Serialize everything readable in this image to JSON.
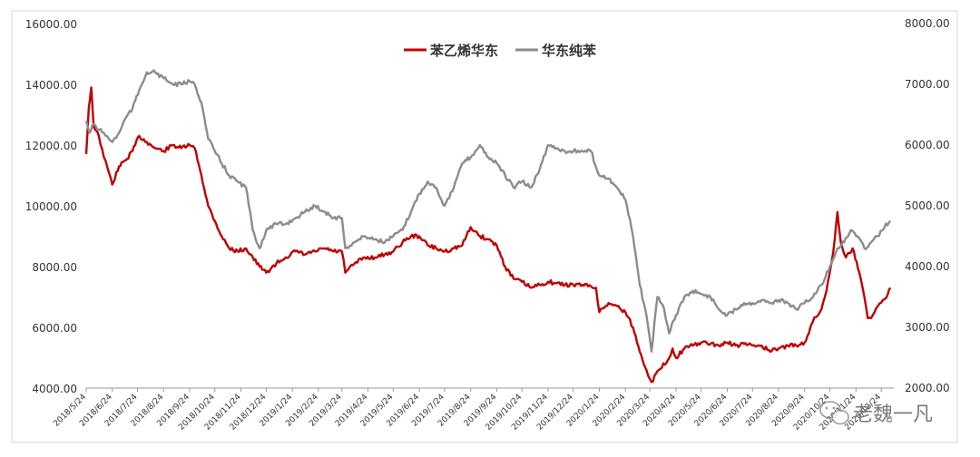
{
  "chart_data": {
    "type": "line",
    "title": "",
    "xlabel": "",
    "ylabel_left": "",
    "ylabel_right": "",
    "y_left_range": [
      4000,
      16000
    ],
    "y_right_range": [
      2000,
      8000
    ],
    "y_left_ticks": [
      "4000.00",
      "6000.00",
      "8000.00",
      "10000.00",
      "12000.00",
      "14000.00",
      "16000.00"
    ],
    "y_right_ticks": [
      "2000.00",
      "3000.00",
      "4000.00",
      "5000.00",
      "6000.00",
      "7000.00",
      "8000.00"
    ],
    "x_ticks": [
      "2018/5/24",
      "2018/6/24",
      "2018/7/24",
      "2018/8/24",
      "2018/9/24",
      "2018/10/24",
      "2018/11/24",
      "2018/12/24",
      "2019/1/24",
      "2019/2/24",
      "2019/3/24",
      "2019/4/24",
      "2019/5/24",
      "2019/6/24",
      "2019/7/24",
      "2019/8/24",
      "2019/9/24",
      "2019/10/24",
      "2019/11/24",
      "2019/12/24",
      "2020/1/24",
      "2020/2/24",
      "2020/3/24",
      "2020/4/24",
      "2020/5/24",
      "2020/6/24",
      "2020/7/24",
      "2020/8/24",
      "2020/9/24",
      "2020/10/24",
      "2020/11/24",
      "2020/12/24"
    ],
    "grid": false,
    "legend_position": "top-center",
    "series": [
      {
        "name": "苯乙烯华东",
        "axis": "left",
        "color": "#c00000",
        "points": [
          [
            "2018/5/24",
            11700
          ],
          [
            "2018/5/27",
            13200
          ],
          [
            "2018/5/30",
            13900
          ],
          [
            "2018/6/2",
            12600
          ],
          [
            "2018/6/8",
            12300
          ],
          [
            "2018/6/14",
            11600
          ],
          [
            "2018/6/20",
            11100
          ],
          [
            "2018/6/24",
            10700
          ],
          [
            "2018/7/2",
            11300
          ],
          [
            "2018/7/10",
            11500
          ],
          [
            "2018/7/18",
            11800
          ],
          [
            "2018/7/26",
            12300
          ],
          [
            "2018/8/4",
            12100
          ],
          [
            "2018/8/14",
            11900
          ],
          [
            "2018/8/24",
            11800
          ],
          [
            "2018/9/4",
            12000
          ],
          [
            "2018/9/14",
            11900
          ],
          [
            "2018/9/24",
            12000
          ],
          [
            "2018/9/30",
            11900
          ],
          [
            "2018/10/8",
            11000
          ],
          [
            "2018/10/16",
            10000
          ],
          [
            "2018/10/24",
            9500
          ],
          [
            "2018/11/1",
            9000
          ],
          [
            "2018/11/10",
            8600
          ],
          [
            "2018/11/20",
            8500
          ],
          [
            "2018/11/30",
            8600
          ],
          [
            "2018/12/8",
            8300
          ],
          [
            "2018/12/16",
            8000
          ],
          [
            "2018/12/24",
            7800
          ],
          [
            "2019/1/5",
            8100
          ],
          [
            "2019/1/16",
            8300
          ],
          [
            "2019/1/28",
            8500
          ],
          [
            "2019/2/8",
            8400
          ],
          [
            "2019/2/20",
            8500
          ],
          [
            "2019/3/4",
            8600
          ],
          [
            "2019/3/14",
            8500
          ],
          [
            "2019/3/24",
            8500
          ],
          [
            "2019/3/28",
            7800
          ],
          [
            "2019/4/8",
            8100
          ],
          [
            "2019/4/20",
            8300
          ],
          [
            "2019/5/2",
            8300
          ],
          [
            "2019/5/14",
            8400
          ],
          [
            "2019/5/24",
            8500
          ],
          [
            "2019/6/4",
            8800
          ],
          [
            "2019/6/14",
            9000
          ],
          [
            "2019/6/24",
            9000
          ],
          [
            "2019/7/4",
            8700
          ],
          [
            "2019/7/14",
            8600
          ],
          [
            "2019/7/24",
            8500
          ],
          [
            "2019/8/4",
            8600
          ],
          [
            "2019/8/14",
            8700
          ],
          [
            "2019/8/24",
            9300
          ],
          [
            "2019/9/4",
            9000
          ],
          [
            "2019/9/14",
            8900
          ],
          [
            "2019/9/24",
            8700
          ],
          [
            "2019/10/4",
            8000
          ],
          [
            "2019/10/14",
            7600
          ],
          [
            "2019/10/24",
            7500
          ],
          [
            "2019/11/4",
            7300
          ],
          [
            "2019/11/14",
            7400
          ],
          [
            "2019/11/24",
            7500
          ],
          [
            "2019/12/4",
            7450
          ],
          [
            "2019/12/14",
            7400
          ],
          [
            "2019/12/24",
            7400
          ],
          [
            "2020/1/4",
            7400
          ],
          [
            "2020/1/14",
            7350
          ],
          [
            "2020/1/20",
            7300
          ],
          [
            "2020/1/24",
            6500
          ],
          [
            "2020/2/4",
            6800
          ],
          [
            "2020/2/14",
            6700
          ],
          [
            "2020/2/24",
            6500
          ],
          [
            "2020/3/4",
            6000
          ],
          [
            "2020/3/12",
            5200
          ],
          [
            "2020/3/20",
            4600
          ],
          [
            "2020/3/26",
            4200
          ],
          [
            "2020/4/4",
            4600
          ],
          [
            "2020/4/14",
            4900
          ],
          [
            "2020/4/20",
            5300
          ],
          [
            "2020/4/24",
            5000
          ],
          [
            "2020/5/4",
            5300
          ],
          [
            "2020/5/14",
            5400
          ],
          [
            "2020/5/24",
            5500
          ],
          [
            "2020/6/4",
            5450
          ],
          [
            "2020/6/14",
            5400
          ],
          [
            "2020/6/24",
            5500
          ],
          [
            "2020/7/4",
            5400
          ],
          [
            "2020/7/14",
            5450
          ],
          [
            "2020/7/24",
            5400
          ],
          [
            "2020/8/4",
            5400
          ],
          [
            "2020/8/14",
            5200
          ],
          [
            "2020/8/24",
            5300
          ],
          [
            "2020/9/4",
            5400
          ],
          [
            "2020/9/14",
            5400
          ],
          [
            "2020/9/24",
            5500
          ],
          [
            "2020/10/4",
            6200
          ],
          [
            "2020/10/14",
            6600
          ],
          [
            "2020/10/20",
            7200
          ],
          [
            "2020/10/28",
            8500
          ],
          [
            "2020/11/2",
            9800
          ],
          [
            "2020/11/6",
            8800
          ],
          [
            "2020/11/12",
            8300
          ],
          [
            "2020/11/20",
            8600
          ],
          [
            "2020/11/28",
            7800
          ],
          [
            "2020/12/4",
            7000
          ],
          [
            "2020/12/8",
            6300
          ],
          [
            "2020/12/14",
            6400
          ],
          [
            "2020/12/20",
            6700
          ],
          [
            "2020/12/26",
            6900
          ],
          [
            "2021/1/1",
            7100
          ],
          [
            "2021/1/4",
            7300
          ]
        ]
      },
      {
        "name": "华东纯苯",
        "axis": "right",
        "color": "#8c8c8c",
        "points": [
          [
            "2018/5/24",
            6400
          ],
          [
            "2018/5/28",
            6200
          ],
          [
            "2018/6/2",
            6350
          ],
          [
            "2018/6/8",
            6250
          ],
          [
            "2018/6/14",
            6200
          ],
          [
            "2018/6/20",
            6100
          ],
          [
            "2018/6/24",
            6050
          ],
          [
            "2018/7/2",
            6200
          ],
          [
            "2018/7/10",
            6450
          ],
          [
            "2018/7/18",
            6600
          ],
          [
            "2018/7/26",
            6900
          ],
          [
            "2018/8/4",
            7200
          ],
          [
            "2018/8/14",
            7200
          ],
          [
            "2018/8/24",
            7100
          ],
          [
            "2018/9/4",
            7000
          ],
          [
            "2018/9/14",
            7000
          ],
          [
            "2018/9/24",
            7050
          ],
          [
            "2018/9/30",
            7000
          ],
          [
            "2018/10/8",
            6700
          ],
          [
            "2018/10/16",
            6100
          ],
          [
            "2018/10/24",
            5900
          ],
          [
            "2018/11/1",
            5700
          ],
          [
            "2018/11/10",
            5500
          ],
          [
            "2018/11/20",
            5400
          ],
          [
            "2018/11/30",
            5300
          ],
          [
            "2018/12/8",
            4600
          ],
          [
            "2018/12/16",
            4300
          ],
          [
            "2018/12/24",
            4600
          ],
          [
            "2019/1/5",
            4700
          ],
          [
            "2019/1/16",
            4700
          ],
          [
            "2019/1/28",
            4800
          ],
          [
            "2019/2/8",
            4900
          ],
          [
            "2019/2/20",
            5000
          ],
          [
            "2019/3/4",
            4900
          ],
          [
            "2019/3/14",
            4800
          ],
          [
            "2019/3/24",
            4800
          ],
          [
            "2019/3/28",
            4300
          ],
          [
            "2019/4/8",
            4400
          ],
          [
            "2019/4/20",
            4500
          ],
          [
            "2019/5/2",
            4450
          ],
          [
            "2019/5/14",
            4400
          ],
          [
            "2019/5/24",
            4500
          ],
          [
            "2019/6/4",
            4600
          ],
          [
            "2019/6/14",
            4900
          ],
          [
            "2019/6/24",
            5200
          ],
          [
            "2019/7/4",
            5400
          ],
          [
            "2019/7/14",
            5300
          ],
          [
            "2019/7/24",
            5000
          ],
          [
            "2019/8/4",
            5300
          ],
          [
            "2019/8/14",
            5700
          ],
          [
            "2019/8/24",
            5800
          ],
          [
            "2019/9/4",
            6000
          ],
          [
            "2019/9/14",
            5800
          ],
          [
            "2019/9/24",
            5700
          ],
          [
            "2019/10/4",
            5500
          ],
          [
            "2019/10/14",
            5300
          ],
          [
            "2019/10/24",
            5400
          ],
          [
            "2019/11/4",
            5300
          ],
          [
            "2019/11/14",
            5600
          ],
          [
            "2019/11/24",
            6000
          ],
          [
            "2019/12/4",
            5950
          ],
          [
            "2019/12/14",
            5900
          ],
          [
            "2019/12/24",
            5900
          ],
          [
            "2020/1/4",
            5900
          ],
          [
            "2020/1/14",
            5900
          ],
          [
            "2020/1/24",
            5500
          ],
          [
            "2020/2/4",
            5450
          ],
          [
            "2020/2/14",
            5300
          ],
          [
            "2020/2/24",
            5100
          ],
          [
            "2020/3/4",
            4500
          ],
          [
            "2020/3/12",
            3700
          ],
          [
            "2020/3/20",
            3200
          ],
          [
            "2020/3/26",
            2600
          ],
          [
            "2020/4/2",
            3500
          ],
          [
            "2020/4/10",
            3300
          ],
          [
            "2020/4/16",
            2900
          ],
          [
            "2020/4/24",
            3200
          ],
          [
            "2020/5/4",
            3500
          ],
          [
            "2020/5/14",
            3600
          ],
          [
            "2020/5/24",
            3550
          ],
          [
            "2020/6/4",
            3500
          ],
          [
            "2020/6/14",
            3300
          ],
          [
            "2020/6/24",
            3200
          ],
          [
            "2020/7/4",
            3300
          ],
          [
            "2020/7/14",
            3400
          ],
          [
            "2020/7/24",
            3400
          ],
          [
            "2020/8/4",
            3450
          ],
          [
            "2020/8/14",
            3400
          ],
          [
            "2020/8/24",
            3450
          ],
          [
            "2020/9/4",
            3400
          ],
          [
            "2020/9/14",
            3300
          ],
          [
            "2020/9/24",
            3400
          ],
          [
            "2020/10/4",
            3500
          ],
          [
            "2020/10/14",
            3700
          ],
          [
            "2020/10/24",
            4000
          ],
          [
            "2020/11/2",
            4300
          ],
          [
            "2020/11/10",
            4400
          ],
          [
            "2020/11/18",
            4600
          ],
          [
            "2020/11/26",
            4500
          ],
          [
            "2020/12/4",
            4300
          ],
          [
            "2020/12/12",
            4400
          ],
          [
            "2020/12/20",
            4500
          ],
          [
            "2020/12/28",
            4650
          ],
          [
            "2021/1/4",
            4750
          ]
        ]
      }
    ]
  },
  "watermark": {
    "text": "老魏一凡",
    "icon": "wechat-icon"
  }
}
